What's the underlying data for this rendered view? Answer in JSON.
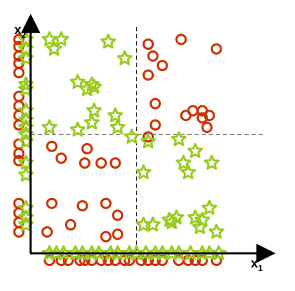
{
  "chart_data": {
    "type": "scatter",
    "title": "",
    "xlabel": "x1",
    "ylabel": "x2",
    "xlabel_main": "x",
    "xlabel_sub": "1",
    "ylabel_main": "x",
    "ylabel_sub": "2",
    "xlim": [
      0,
      10
    ],
    "ylim": [
      0,
      10
    ],
    "grid": false,
    "legend": "none",
    "threshold_lines": {
      "x": 4.5,
      "y": 5.0
    },
    "series": [
      {
        "marker": "circle",
        "color": "#cc3300",
        "points": [
          [
            5.0,
            8.8
          ],
          [
            6.4,
            9.0
          ],
          [
            7.9,
            8.6
          ],
          [
            5.2,
            8.3
          ],
          [
            5.6,
            7.9
          ],
          [
            5.0,
            7.5
          ],
          [
            5.3,
            6.3
          ],
          [
            6.9,
            6.0
          ],
          [
            7.3,
            6.0
          ],
          [
            6.6,
            5.8
          ],
          [
            7.3,
            5.7
          ],
          [
            7.6,
            5.8
          ],
          [
            7.5,
            5.3
          ],
          [
            5.3,
            5.4
          ],
          [
            5.0,
            4.9
          ],
          [
            0.9,
            4.5
          ],
          [
            1.3,
            4.0
          ],
          [
            2.4,
            4.4
          ],
          [
            2.3,
            3.8
          ],
          [
            3.0,
            3.8
          ],
          [
            3.6,
            3.8
          ],
          [
            0.9,
            2.1
          ],
          [
            2.2,
            2.0
          ],
          [
            3.2,
            2.1
          ],
          [
            3.7,
            1.6
          ],
          [
            1.7,
            1.2
          ],
          [
            0.7,
            0.9
          ],
          [
            3.2,
            0.7
          ],
          [
            3.7,
            0.8
          ]
        ]
      },
      {
        "marker": "star",
        "color": "#99cc22",
        "points": [
          [
            0.8,
            9.0
          ],
          [
            1.3,
            9.0
          ],
          [
            1.0,
            8.6
          ],
          [
            3.3,
            8.9
          ],
          [
            4.0,
            8.2
          ],
          [
            2.0,
            7.2
          ],
          [
            2.6,
            7.1
          ],
          [
            2.4,
            6.9
          ],
          [
            2.7,
            7.0
          ],
          [
            2.7,
            6.0
          ],
          [
            3.6,
            5.8
          ],
          [
            2.6,
            5.5
          ],
          [
            2.0,
            5.2
          ],
          [
            0.8,
            5.3
          ],
          [
            3.7,
            5.3
          ],
          [
            4.3,
            4.9
          ],
          [
            5.0,
            4.7
          ],
          [
            6.3,
            4.8
          ],
          [
            7.0,
            4.3
          ],
          [
            6.5,
            3.8
          ],
          [
            7.7,
            3.8
          ],
          [
            4.8,
            3.4
          ],
          [
            6.7,
            3.4
          ],
          [
            7.6,
            1.9
          ],
          [
            6.2,
            1.5
          ],
          [
            5.9,
            1.4
          ],
          [
            7.0,
            1.5
          ],
          [
            7.3,
            1.4
          ],
          [
            5.2,
            1.2
          ],
          [
            6.0,
            1.3
          ],
          [
            7.2,
            1.1
          ],
          [
            7.9,
            0.9
          ],
          [
            4.8,
            1.2
          ]
        ]
      },
      {
        "marker": "circle",
        "color": "#cc3300",
        "role": "x-axis projection",
        "points": [
          [
            0.8,
            -0.3
          ],
          [
            1.3,
            -0.3
          ],
          [
            1.6,
            -0.3
          ],
          [
            2.1,
            -0.3
          ],
          [
            2.3,
            -0.3
          ],
          [
            2.6,
            -0.3
          ],
          [
            3.0,
            -0.3
          ],
          [
            3.3,
            -0.3
          ],
          [
            3.6,
            -0.3
          ],
          [
            4.0,
            -0.3
          ],
          [
            4.2,
            -0.3
          ],
          [
            4.7,
            -0.3
          ],
          [
            5.0,
            -0.3
          ],
          [
            5.3,
            -0.3
          ],
          [
            5.6,
            -0.3
          ],
          [
            6.3,
            -0.3
          ],
          [
            6.7,
            -0.3
          ],
          [
            7.0,
            -0.3
          ],
          [
            7.3,
            -0.3
          ],
          [
            7.9,
            -0.3
          ]
        ]
      },
      {
        "marker": "star",
        "color": "#99cc22",
        "role": "x-axis projection",
        "points": [
          [
            0.8,
            0.0
          ],
          [
            1.1,
            0.0
          ],
          [
            1.4,
            0.0
          ],
          [
            1.9,
            0.0
          ],
          [
            2.2,
            0.0
          ],
          [
            2.6,
            0.0
          ],
          [
            2.9,
            0.0
          ],
          [
            3.4,
            0.0
          ],
          [
            3.7,
            0.0
          ],
          [
            4.2,
            0.0
          ],
          [
            4.5,
            0.0
          ],
          [
            4.9,
            0.0
          ],
          [
            5.3,
            0.0
          ],
          [
            5.6,
            0.0
          ],
          [
            6.0,
            0.0
          ],
          [
            6.3,
            0.0
          ],
          [
            6.8,
            0.0
          ],
          [
            7.3,
            0.0
          ],
          [
            7.6,
            0.0
          ],
          [
            8.0,
            0.0
          ]
        ]
      },
      {
        "marker": "circle",
        "color": "#cc3300",
        "role": "y-axis projection",
        "points": [
          [
            -0.5,
            9.0
          ],
          [
            -0.5,
            8.7
          ],
          [
            -0.5,
            8.3
          ],
          [
            -0.5,
            8.0
          ],
          [
            -0.5,
            7.6
          ],
          [
            -0.5,
            6.6
          ],
          [
            -0.5,
            6.2
          ],
          [
            -0.5,
            5.8
          ],
          [
            -0.5,
            5.4
          ],
          [
            -0.5,
            4.6
          ],
          [
            -0.5,
            4.2
          ],
          [
            -0.5,
            3.9
          ],
          [
            -0.5,
            2.1
          ],
          [
            -0.5,
            1.7
          ],
          [
            -0.5,
            1.3
          ],
          [
            -0.5,
            0.9
          ]
        ]
      },
      {
        "marker": "star",
        "color": "#99cc22",
        "role": "y-axis projection",
        "points": [
          [
            -0.2,
            9.0
          ],
          [
            -0.2,
            8.6
          ],
          [
            -0.2,
            8.2
          ],
          [
            -0.2,
            7.1
          ],
          [
            -0.2,
            6.9
          ],
          [
            -0.2,
            6.0
          ],
          [
            -0.2,
            5.6
          ],
          [
            -0.2,
            5.3
          ],
          [
            -0.2,
            5.0
          ],
          [
            -0.2,
            4.7
          ],
          [
            -0.2,
            3.8
          ],
          [
            -0.2,
            3.3
          ],
          [
            -0.2,
            1.9
          ],
          [
            -0.2,
            1.5
          ],
          [
            -0.2,
            1.2
          ]
        ]
      }
    ]
  }
}
